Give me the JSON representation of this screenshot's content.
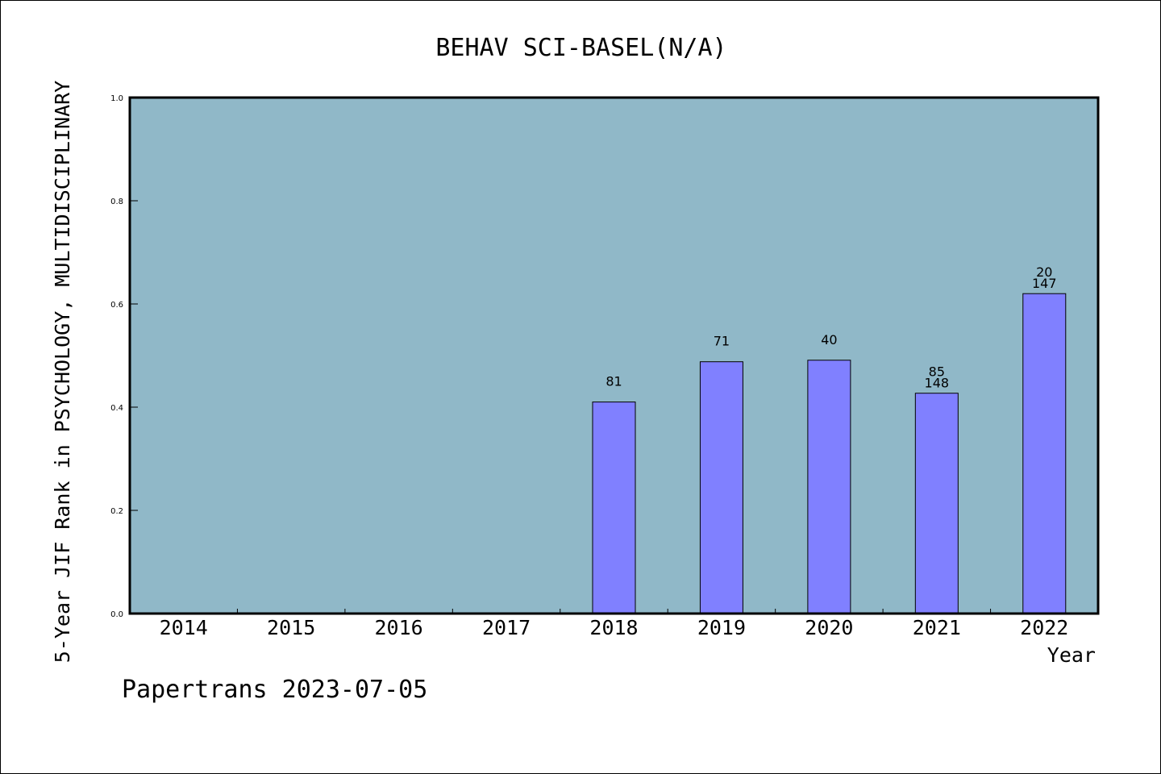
{
  "chart_data": {
    "type": "bar",
    "title": "BEHAV SCI-BASEL(N/A)",
    "xlabel": "Year",
    "ylabel": "5-Year JIF Rank in PSYCHOLOGY, MULTIDISCIPLINARY",
    "categories": [
      "2014",
      "2015",
      "2016",
      "2017",
      "2018",
      "2019",
      "2020",
      "2021",
      "2022"
    ],
    "values": [
      null,
      null,
      null,
      null,
      0.41,
      0.488,
      0.491,
      0.427,
      0.62
    ],
    "bar_labels": [
      [],
      [],
      [],
      [],
      [
        "81"
      ],
      [
        "71"
      ],
      [
        "40"
      ],
      [
        "85",
        "148"
      ],
      [
        "20",
        "147"
      ]
    ],
    "ylim": [
      0,
      1.0
    ],
    "yticks": [
      "0.0",
      "0.2",
      "0.4",
      "0.6",
      "0.8",
      "1.0"
    ],
    "grid": false,
    "colors": {
      "plot_background": "#90b8c8",
      "bar_fill": "#8080ff",
      "bar_stroke": "#000000"
    }
  },
  "footer": "Papertrans 2023-07-05"
}
